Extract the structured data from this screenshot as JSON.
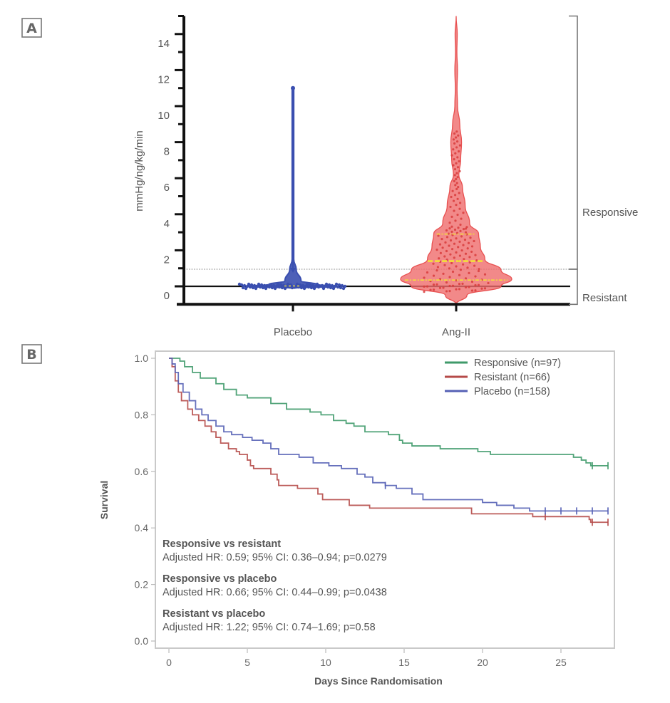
{
  "panels": {
    "a_label": "A",
    "b_label": "B"
  },
  "chart_data": [
    {
      "type": "violin",
      "panel": "A",
      "ylabel": "mmHg/ng/kg/min",
      "xlabel": "",
      "categories": [
        "Placebo",
        "Ang-II"
      ],
      "ylim": [
        -1,
        15
      ],
      "yticks": [
        0,
        2,
        4,
        6,
        8,
        10,
        12,
        14
      ],
      "ytick_labels": [
        "0",
        "2",
        "4",
        "6",
        "8",
        "10",
        "12",
        "14"
      ],
      "reference_lines": [
        {
          "value": 0,
          "style": "solid"
        },
        {
          "value": 0.95,
          "style": "dotted",
          "meaning": "responsiveness threshold"
        }
      ],
      "brackets": [
        {
          "label": "Responsive",
          "from": 0.95,
          "to": 15
        },
        {
          "label": "Resistant",
          "from": -1,
          "to": 0.95
        }
      ],
      "series": [
        {
          "name": "Placebo",
          "color": "#3a4fb0",
          "min": -0.1,
          "max": 11.0,
          "quartiles": [
            0.0,
            0.02,
            0.05
          ],
          "density_profile": [
            [
              -0.1,
              0.02
            ],
            [
              0.0,
              0.55
            ],
            [
              0.1,
              0.3
            ],
            [
              0.3,
              0.1
            ],
            [
              0.95,
              0.04
            ],
            [
              1.5,
              0.01
            ],
            [
              11.0,
              0.01
            ]
          ]
        },
        {
          "name": "Ang-II",
          "color": "#ef6b6b",
          "min": -1.0,
          "max": 15.0,
          "quartiles": [
            0.35,
            1.4,
            2.9
          ],
          "density_profile": [
            [
              -1.0,
              0.0
            ],
            [
              -0.5,
              0.12
            ],
            [
              0.0,
              0.5
            ],
            [
              0.4,
              0.62
            ],
            [
              0.9,
              0.5
            ],
            [
              1.5,
              0.32
            ],
            [
              2.2,
              0.27
            ],
            [
              2.9,
              0.25
            ],
            [
              3.5,
              0.15
            ],
            [
              4.5,
              0.1
            ],
            [
              5.5,
              0.07
            ],
            [
              6.2,
              0.03
            ],
            [
              7.0,
              0.05
            ],
            [
              8.0,
              0.06
            ],
            [
              9.0,
              0.04
            ],
            [
              10.0,
              0.015
            ],
            [
              11.0,
              0.01
            ],
            [
              12.0,
              0.015
            ],
            [
              13.0,
              0.008
            ],
            [
              14.0,
              0.012
            ],
            [
              15.0,
              0.0
            ]
          ]
        }
      ]
    },
    {
      "type": "line",
      "subtype": "kaplan-meier",
      "panel": "B",
      "xlabel": "Days Since Randomisation",
      "ylabel": "Survival",
      "xlim": [
        -1,
        28.5
      ],
      "ylim": [
        0,
        1.0
      ],
      "xticks": [
        0,
        5,
        10,
        15,
        20,
        25
      ],
      "yticks": [
        0.0,
        0.2,
        0.4,
        0.6,
        0.8,
        1.0
      ],
      "ytick_labels": [
        "0.0",
        "0.2",
        "0.4",
        "0.6",
        "0.8",
        "1.0"
      ],
      "grid": false,
      "legend_position": "top-right",
      "series": [
        {
          "name": "Responsive (n=97)",
          "color": "#3f9a6a",
          "steps": [
            [
              0,
              1.0
            ],
            [
              0.7,
              0.99
            ],
            [
              1.0,
              0.97
            ],
            [
              1.5,
              0.95
            ],
            [
              2.0,
              0.93
            ],
            [
              3.0,
              0.91
            ],
            [
              3.5,
              0.89
            ],
            [
              4.3,
              0.87
            ],
            [
              5.0,
              0.86
            ],
            [
              6.5,
              0.84
            ],
            [
              7.5,
              0.82
            ],
            [
              9.0,
              0.81
            ],
            [
              9.7,
              0.8
            ],
            [
              10.5,
              0.78
            ],
            [
              11.3,
              0.77
            ],
            [
              11.8,
              0.76
            ],
            [
              12.5,
              0.74
            ],
            [
              14.0,
              0.73
            ],
            [
              14.7,
              0.71
            ],
            [
              14.9,
              0.7
            ],
            [
              15.5,
              0.69
            ],
            [
              17.3,
              0.68
            ],
            [
              19.7,
              0.67
            ],
            [
              20.5,
              0.66
            ],
            [
              24.0,
              0.66
            ],
            [
              25.8,
              0.65
            ],
            [
              26.3,
              0.64
            ],
            [
              26.6,
              0.63
            ],
            [
              26.9,
              0.62
            ],
            [
              28.0,
              0.62
            ]
          ],
          "censor_marks": [
            27.0,
            28.0
          ]
        },
        {
          "name": "Resistant (n=66)",
          "color": "#b54a48",
          "steps": [
            [
              0,
              1.0
            ],
            [
              0.2,
              0.97
            ],
            [
              0.4,
              0.92
            ],
            [
              0.6,
              0.88
            ],
            [
              0.8,
              0.85
            ],
            [
              1.2,
              0.82
            ],
            [
              1.5,
              0.8
            ],
            [
              1.9,
              0.78
            ],
            [
              2.3,
              0.76
            ],
            [
              2.7,
              0.74
            ],
            [
              3.0,
              0.72
            ],
            [
              3.3,
              0.7
            ],
            [
              3.8,
              0.68
            ],
            [
              4.3,
              0.67
            ],
            [
              4.5,
              0.66
            ],
            [
              5.0,
              0.64
            ],
            [
              5.2,
              0.62
            ],
            [
              5.4,
              0.61
            ],
            [
              6.5,
              0.59
            ],
            [
              6.9,
              0.57
            ],
            [
              7.0,
              0.55
            ],
            [
              8.2,
              0.54
            ],
            [
              9.5,
              0.52
            ],
            [
              9.8,
              0.5
            ],
            [
              11.5,
              0.48
            ],
            [
              12.8,
              0.47
            ],
            [
              19.3,
              0.45
            ],
            [
              23.2,
              0.44
            ],
            [
              26.8,
              0.43
            ],
            [
              26.9,
              0.42
            ],
            [
              28.0,
              0.42
            ]
          ],
          "censor_marks": [
            24.0,
            27.0,
            28.0
          ]
        },
        {
          "name": "Placebo (n=158)",
          "color": "#5560b5",
          "steps": [
            [
              0,
              1.0
            ],
            [
              0.2,
              0.98
            ],
            [
              0.4,
              0.95
            ],
            [
              0.6,
              0.91
            ],
            [
              0.9,
              0.88
            ],
            [
              1.3,
              0.85
            ],
            [
              1.7,
              0.82
            ],
            [
              2.1,
              0.8
            ],
            [
              2.5,
              0.78
            ],
            [
              3.0,
              0.76
            ],
            [
              3.5,
              0.74
            ],
            [
              4.0,
              0.73
            ],
            [
              4.7,
              0.72
            ],
            [
              5.3,
              0.71
            ],
            [
              6.0,
              0.7
            ],
            [
              6.5,
              0.68
            ],
            [
              7.0,
              0.66
            ],
            [
              8.3,
              0.65
            ],
            [
              9.2,
              0.63
            ],
            [
              10.2,
              0.62
            ],
            [
              11.0,
              0.61
            ],
            [
              12.0,
              0.59
            ],
            [
              12.5,
              0.58
            ],
            [
              13.0,
              0.56
            ],
            [
              13.8,
              0.55
            ],
            [
              14.5,
              0.54
            ],
            [
              15.5,
              0.52
            ],
            [
              16.2,
              0.5
            ],
            [
              20.0,
              0.49
            ],
            [
              20.9,
              0.48
            ],
            [
              22.0,
              0.47
            ],
            [
              23.0,
              0.46
            ],
            [
              28.0,
              0.46
            ]
          ],
          "censor_marks": [
            13.8,
            24.0,
            25.0,
            26.0,
            27.0,
            28.0
          ]
        }
      ],
      "annotations": [
        {
          "title": "Responsive vs resistant",
          "text": "Adjusted HR: 0.59; 95% CI: 0.36–0.94; p=0.0279"
        },
        {
          "title": "Responsive vs placebo",
          "text": "Adjusted HR: 0.66; 95% CI: 0.44–0.99; p=0.0438"
        },
        {
          "title": "Resistant vs placebo",
          "text": "Adjusted HR: 1.22; 95% CI: 0.74–1.69; p=0.58"
        }
      ]
    }
  ]
}
